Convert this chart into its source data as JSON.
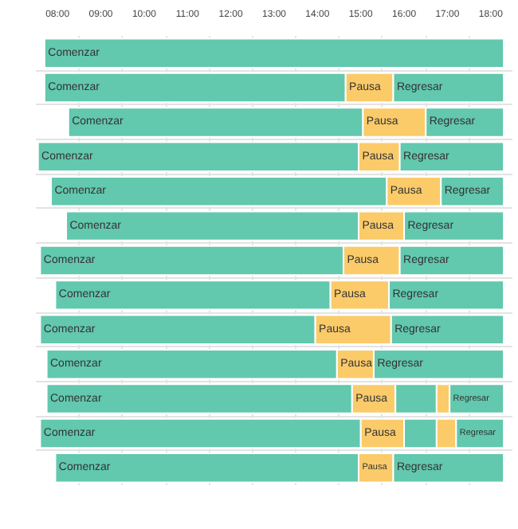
{
  "chart_data": {
    "type": "bar",
    "orientation": "horizontal",
    "grid": true,
    "tick_labels": "x",
    "categories": [
      null,
      null,
      null,
      null,
      null,
      null,
      null,
      null,
      null,
      null,
      null,
      null,
      null
    ],
    "xlim": [
      7.5,
      18.5
    ],
    "xticks": [
      {
        "value": 8,
        "label": "08:00"
      },
      {
        "value": 9,
        "label": "09:00"
      },
      {
        "value": 10,
        "label": "10:00"
      },
      {
        "value": 11,
        "label": "11:00"
      },
      {
        "value": 12,
        "label": "12:00"
      },
      {
        "value": 13,
        "label": "13:00"
      },
      {
        "value": 14,
        "label": "14:00"
      },
      {
        "value": 15,
        "label": "15:00"
      },
      {
        "value": 16,
        "label": "16:00"
      },
      {
        "value": 17,
        "label": "17:00"
      },
      {
        "value": 18,
        "label": "18:00"
      }
    ],
    "series": [
      {
        "name": "Comenzar",
        "color": "#62c8ae",
        "base": [
          7.7,
          7.7,
          8.25,
          7.55,
          7.85,
          8.2,
          7.6,
          7.95,
          7.6,
          7.75,
          7.75,
          7.6,
          7.95
        ],
        "values": [
          10.6,
          6.95,
          6.8,
          7.4,
          7.75,
          6.75,
          7.0,
          6.35,
          6.35,
          6.7,
          7.05,
          7.4,
          7.0
        ]
      },
      {
        "name": "Pausa",
        "color": "#fbcb6a",
        "base": [
          null,
          14.65,
          15.05,
          14.95,
          15.6,
          14.95,
          14.6,
          14.3,
          13.95,
          14.45,
          14.8,
          15.0,
          14.95
        ],
        "values": [
          null,
          1.1,
          1.45,
          0.95,
          1.25,
          1.05,
          1.3,
          1.35,
          1.75,
          0.85,
          1.0,
          1.0,
          0.8
        ]
      },
      {
        "color": "#62c8ae",
        "base": [
          null,
          null,
          null,
          null,
          null,
          null,
          null,
          null,
          null,
          null,
          15.8,
          16.0,
          null
        ],
        "values": [
          null,
          null,
          null,
          null,
          null,
          null,
          null,
          null,
          null,
          null,
          0.95,
          0.75,
          null
        ]
      },
      {
        "color": "#fbcb6a",
        "base": [
          null,
          null,
          null,
          null,
          null,
          null,
          null,
          null,
          null,
          null,
          16.75,
          16.75,
          null
        ],
        "values": [
          null,
          null,
          null,
          null,
          null,
          null,
          null,
          null,
          null,
          null,
          0.3,
          0.45,
          null
        ]
      },
      {
        "name": "Regresar",
        "color": "#62c8ae",
        "base": [
          null,
          15.75,
          16.5,
          15.9,
          16.85,
          16.0,
          15.9,
          15.65,
          15.7,
          15.3,
          17.05,
          17.2,
          15.75
        ],
        "values": [
          null,
          2.55,
          1.8,
          2.4,
          1.45,
          2.3,
          2.4,
          2.65,
          2.6,
          3.0,
          1.25,
          1.1,
          2.55
        ]
      }
    ]
  }
}
